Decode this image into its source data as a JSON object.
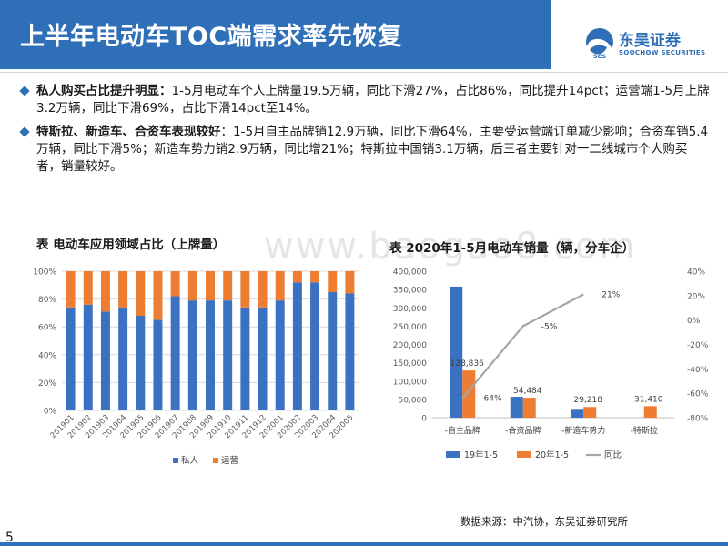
{
  "header": {
    "title": "上半年电动车TOC端需求率先恢复"
  },
  "logo": {
    "cn": "东吴证券",
    "en": "SOOCHOW SECURITIES",
    "mark": "SCS"
  },
  "bullets": [
    {
      "lead": "私人购买占比提升明显：",
      "text": "1-5月电动车个人上牌量19.5万辆，同比下滑27%，占比86%，同比提升14pct；运营端1-5月上牌3.2万辆，同比下滑69%，占比下滑14pct至14%。"
    },
    {
      "lead": "特斯拉、新造车、合资车表现较好",
      "text": "：1-5月自主品牌销12.9万辆，同比下滑64%，主要受运营端订单减少影响；合资车销5.4万辆，同比下滑5%；新造车势力销2.9万辆，同比增21%；特斯拉中国销3.1万辆，后三者主要针对一二线城市个人购买者，销量较好。"
    }
  ],
  "watermark": "www.baogao8.com",
  "source": "数据来源：中汽协，东吴证券研究所",
  "page_number": "5",
  "colors": {
    "accent": "#2f6fb7",
    "blue_series": "#3a71c1",
    "orange_series": "#ed7d31",
    "gray_series": "#a5a5a5"
  },
  "chart_data": [
    {
      "type": "bar",
      "stacked": true,
      "title": "表  电动车应用领域占比（上牌量）",
      "categories": [
        "201901",
        "201902",
        "201903",
        "201904",
        "201905",
        "201906",
        "201907",
        "201908",
        "201909",
        "201910",
        "201911",
        "201912",
        "202001",
        "202002",
        "202003",
        "202004",
        "202005"
      ],
      "series": [
        {
          "name": "私人",
          "color": "#3a71c1",
          "values": [
            74,
            76,
            71,
            74,
            68,
            65,
            82,
            79,
            79,
            79,
            74,
            74,
            79,
            92,
            92,
            85,
            84
          ]
        },
        {
          "name": "运营",
          "color": "#ed7d31",
          "values": [
            26,
            24,
            29,
            26,
            32,
            35,
            18,
            21,
            21,
            21,
            26,
            26,
            21,
            8,
            8,
            15,
            16
          ]
        }
      ],
      "ylim": [
        0,
        100
      ],
      "yticks": [
        "0%",
        "20%",
        "40%",
        "60%",
        "80%",
        "100%"
      ],
      "grid": true,
      "legend": "bottom"
    },
    {
      "type": "bar",
      "title": "表  2020年1-5月电动车销量（辆，分车企）",
      "categories": [
        "-自主品牌",
        "-合资品牌",
        "-新造车势力",
        "-特斯拉"
      ],
      "series": [
        {
          "name": "19年1-5",
          "color": "#3a71c1",
          "values": [
            358000,
            57000,
            24100,
            null
          ]
        },
        {
          "name": "20年1-5",
          "color": "#ed7d31",
          "values": [
            128836,
            54484,
            29218,
            31410
          ]
        },
        {
          "name": "同比",
          "type": "line",
          "axis": "right",
          "color": "#a5a5a5",
          "values": [
            -64,
            -5,
            21,
            null
          ]
        }
      ],
      "value_labels": [
        "128,836",
        "54,484",
        "29,218",
        "31,410"
      ],
      "pct_labels": [
        "-64%",
        "-5%",
        "21%"
      ],
      "ylim": [
        0,
        400000
      ],
      "yticks": [
        "0",
        "50,000",
        "100,000",
        "150,000",
        "200,000",
        "250,000",
        "300,000",
        "350,000",
        "400,000"
      ],
      "y2lim": [
        -80,
        40
      ],
      "y2ticks": [
        "-80%",
        "-60%",
        "-40%",
        "-20%",
        "0%",
        "20%",
        "40%"
      ],
      "grid": false,
      "legend": "bottom"
    }
  ]
}
